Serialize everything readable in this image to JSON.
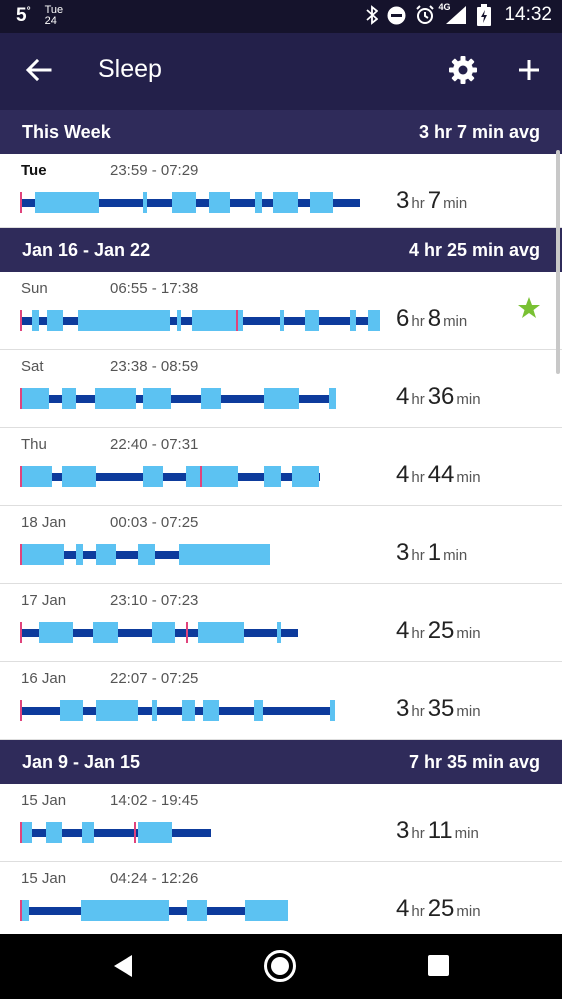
{
  "status_bar": {
    "temperature": "5",
    "temperature_unit": "°",
    "day": "Tue",
    "date": "24",
    "network": "4G",
    "time": "14:32"
  },
  "app_bar": {
    "title": "Sleep"
  },
  "colors": {
    "deep": "#0d3b9c",
    "light": "#5cc2f2",
    "awake": "#e0437c",
    "star": "#79c133",
    "header": "#2f2b5a"
  },
  "weeks": [
    {
      "label": "This Week",
      "avg": "3 hr 7 min avg",
      "entries": [
        {
          "day": "Tue",
          "time": "23:59 - 07:29",
          "hours": "3",
          "hr_label": "hr",
          "minutes": "7",
          "min_label": "min",
          "star": false,
          "bold": true,
          "pattern": 1
        }
      ]
    },
    {
      "label": "Jan 16 - Jan 22",
      "avg": "4 hr 25 min avg",
      "entries": [
        {
          "day": "Sun",
          "time": "06:55 - 17:38",
          "hours": "6",
          "hr_label": "hr",
          "minutes": "8",
          "min_label": "min",
          "star": true,
          "pattern": 2
        },
        {
          "day": "Sat",
          "time": "23:38 - 08:59",
          "hours": "4",
          "hr_label": "hr",
          "minutes": "36",
          "min_label": "min",
          "star": false,
          "pattern": 3
        },
        {
          "day": "Thu",
          "time": "22:40 - 07:31",
          "hours": "4",
          "hr_label": "hr",
          "minutes": "44",
          "min_label": "min",
          "star": false,
          "pattern": 4
        },
        {
          "day": "18 Jan",
          "time": "00:03 - 07:25",
          "hours": "3",
          "hr_label": "hr",
          "minutes": "1",
          "min_label": "min",
          "star": false,
          "pattern": 5
        },
        {
          "day": "17 Jan",
          "time": "23:10 - 07:23",
          "hours": "4",
          "hr_label": "hr",
          "minutes": "25",
          "min_label": "min",
          "star": false,
          "pattern": 6
        },
        {
          "day": "16 Jan",
          "time": "22:07 - 07:25",
          "hours": "3",
          "hr_label": "hr",
          "minutes": "35",
          "min_label": "min",
          "star": false,
          "pattern": 7
        }
      ]
    },
    {
      "label": "Jan 9 - Jan 15",
      "avg": "7 hr 35 min avg",
      "entries": [
        {
          "day": "15 Jan",
          "time": "14:02 - 19:45",
          "hours": "3",
          "hr_label": "hr",
          "minutes": "11",
          "min_label": "min",
          "star": false,
          "pattern": 8
        },
        {
          "day": "15 Jan",
          "time": "04:24 - 12:26",
          "hours": "4",
          "hr_label": "hr",
          "minutes": "25",
          "min_label": "min",
          "star": false,
          "pattern": 9
        }
      ]
    }
  ]
}
